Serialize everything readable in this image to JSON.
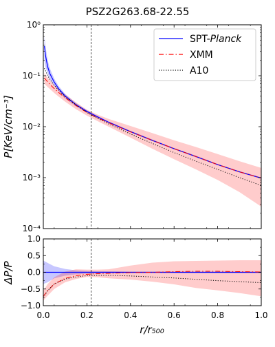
{
  "chart_data": [
    {
      "type": "line",
      "title": "PSZ2G263.68-22.55",
      "ylabel": "P[KeV/cm⁻³]",
      "yscale": "log",
      "xlim": [
        0.0,
        1.0
      ],
      "ylim": [
        0.0001,
        1
      ],
      "ytick_labels": [
        "10⁻⁴",
        "10⁻³",
        "10⁻²",
        "10⁻¹",
        "10⁰"
      ],
      "ytick_values": [
        0.0001,
        0.001,
        0.01,
        0.1,
        1
      ],
      "vline_x": 0.22,
      "legend_position": "top-right",
      "x": [
        0.005,
        0.01,
        0.02,
        0.03,
        0.05,
        0.07,
        0.1,
        0.15,
        0.2,
        0.25,
        0.3,
        0.4,
        0.5,
        0.6,
        0.7,
        0.8,
        0.9,
        1.0
      ],
      "series": [
        {
          "name": "SPT-Planck",
          "name_plain": "SPT-",
          "name_italic": "Planck",
          "color": "#0000ff",
          "style": "solid",
          "values": [
            0.38,
            0.25,
            0.15,
            0.11,
            0.075,
            0.056,
            0.04,
            0.027,
            0.02,
            0.0155,
            0.0122,
            0.008,
            0.0054,
            0.0037,
            0.0026,
            0.0018,
            0.0013,
            0.00098
          ],
          "band_upper": [
            0.6,
            0.38,
            0.2,
            0.14,
            0.088,
            0.063,
            0.044,
            0.029,
            0.021,
            0.0162,
            0.0127,
            0.0083,
            0.0056,
            0.0038,
            0.0027,
            0.00185,
            0.00134,
            0.00101
          ],
          "band_lower": [
            0.2,
            0.15,
            0.11,
            0.085,
            0.064,
            0.05,
            0.036,
            0.025,
            0.019,
            0.0148,
            0.0117,
            0.0077,
            0.0052,
            0.0036,
            0.0025,
            0.00175,
            0.00126,
            0.00095
          ]
        },
        {
          "name": "XMM",
          "color": "#ff0000",
          "style": "dashdot",
          "values": [
            0.09,
            0.085,
            0.076,
            0.068,
            0.056,
            0.047,
            0.037,
            0.026,
            0.019,
            0.0149,
            0.0119,
            0.0079,
            0.0054,
            0.0037,
            0.0026,
            0.0018,
            0.0013,
            0.00098
          ],
          "band_upper": [
            0.115,
            0.105,
            0.092,
            0.082,
            0.066,
            0.055,
            0.043,
            0.03,
            0.0215,
            0.0172,
            0.0142,
            0.0103,
            0.0075,
            0.0054,
            0.004,
            0.0029,
            0.0021,
            0.00155
          ],
          "band_lower": [
            0.07,
            0.066,
            0.06,
            0.055,
            0.046,
            0.039,
            0.031,
            0.022,
            0.0165,
            0.0128,
            0.01,
            0.0061,
            0.0037,
            0.0023,
            0.00145,
            0.0009,
            0.00052,
            0.00027
          ]
        },
        {
          "name": "A10",
          "color": "#000000",
          "style": "dotted",
          "values": [
            0.14,
            0.125,
            0.1,
            0.085,
            0.065,
            0.052,
            0.039,
            0.027,
            0.019,
            0.0145,
            0.0113,
            0.0072,
            0.0047,
            0.0031,
            0.0021,
            0.00145,
            0.001,
            0.0007
          ]
        }
      ]
    },
    {
      "type": "line",
      "xlabel": "r/r₅₀₀",
      "ylabel": "ΔP/P",
      "xlim": [
        0.0,
        1.0
      ],
      "ylim": [
        -1.0,
        1.0
      ],
      "xtick_labels": [
        "0.0",
        "0.2",
        "0.4",
        "0.6",
        "0.8",
        "1.0"
      ],
      "xtick_values": [
        0.0,
        0.2,
        0.4,
        0.6,
        0.8,
        1.0
      ],
      "ytick_labels": [
        "−1.0",
        "−0.5",
        "0.0",
        "0.5",
        "1.0"
      ],
      "ytick_values": [
        -1.0,
        -0.5,
        0.0,
        0.5,
        1.0
      ],
      "vline_x": 0.22,
      "x": [
        0.0,
        0.02,
        0.05,
        0.1,
        0.15,
        0.2,
        0.25,
        0.3,
        0.4,
        0.5,
        0.6,
        0.7,
        0.8,
        0.9,
        1.0
      ],
      "series": [
        {
          "name": "SPT-Planck",
          "color": "#0000ff",
          "style": "solid",
          "values": [
            0,
            0,
            0,
            0,
            0,
            0,
            0,
            0,
            0,
            0,
            0,
            0,
            0,
            0,
            0
          ],
          "band_upper": [
            0.35,
            0.28,
            0.18,
            0.1,
            0.06,
            0.04,
            0.03,
            0.03,
            0.02,
            0.02,
            0.02,
            0.02,
            0.02,
            0.02,
            0.02
          ],
          "band_lower": [
            -0.35,
            -0.3,
            -0.18,
            -0.1,
            -0.06,
            -0.04,
            -0.03,
            -0.03,
            -0.02,
            -0.02,
            -0.02,
            -0.02,
            -0.02,
            -0.02,
            -0.02
          ]
        },
        {
          "name": "XMM",
          "color": "#ff0000",
          "style": "dashdot",
          "values": [
            -0.72,
            -0.55,
            -0.35,
            -0.18,
            -0.1,
            -0.06,
            -0.04,
            -0.03,
            -0.01,
            0.0,
            0.02,
            0.03,
            0.03,
            0.02,
            0.01
          ],
          "band_upper": [
            -0.55,
            -0.35,
            -0.15,
            0.02,
            0.09,
            0.08,
            0.08,
            0.09,
            0.2,
            0.29,
            0.33,
            0.34,
            0.35,
            0.36,
            0.36
          ],
          "band_lower": [
            -0.85,
            -0.7,
            -0.5,
            -0.3,
            -0.2,
            -0.14,
            -0.15,
            -0.18,
            -0.22,
            -0.28,
            -0.36,
            -0.47,
            -0.54,
            -0.62,
            -0.72
          ]
        },
        {
          "name": "A10",
          "color": "#000000",
          "style": "dotted",
          "values": [
            -0.75,
            -0.55,
            -0.35,
            -0.2,
            -0.14,
            -0.1,
            -0.09,
            -0.09,
            -0.11,
            -0.14,
            -0.17,
            -0.21,
            -0.25,
            -0.28,
            -0.31
          ]
        }
      ]
    }
  ]
}
